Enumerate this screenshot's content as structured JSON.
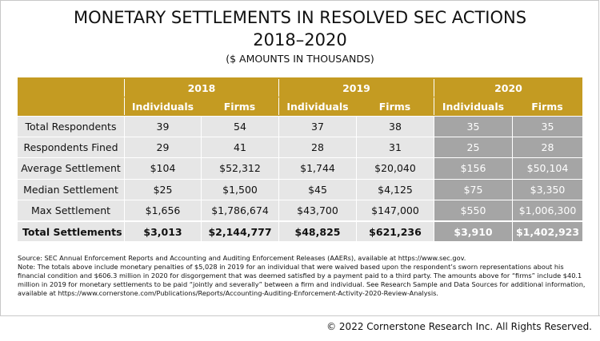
{
  "header": {
    "title": "MONETARY SETTLEMENTS IN RESOLVED SEC ACTIONS",
    "years": "2018–2020",
    "subtitle": "($ AMOUNTS IN THOUSANDS)"
  },
  "table": {
    "years": [
      "2018",
      "2019",
      "2020"
    ],
    "subheaders": [
      "Individuals",
      "Firms",
      "Individuals",
      "Firms",
      "Individuals",
      "Firms"
    ],
    "rows": [
      [
        "Total Respondents",
        "39",
        "54",
        "37",
        "38",
        "35",
        "35"
      ],
      [
        "Respondents Fined",
        "29",
        "41",
        "28",
        "31",
        "25",
        "28"
      ],
      [
        "Average Settlement",
        "$104",
        "$52,312",
        "$1,744",
        "$20,040",
        "$156",
        "$50,104"
      ],
      [
        "Median Settlement",
        "$25",
        "$1,500",
        "$45",
        "$4,125",
        "$75",
        "$3,350"
      ],
      [
        "Max Settlement",
        "$1,656",
        "$1,786,674",
        "$43,700",
        "$147,000",
        "$550",
        "$1,006,300"
      ],
      [
        "Total Settlements",
        "$3,013",
        "$2,144,777",
        "$48,825",
        "$621,236",
        "$3,910",
        "$1,402,923"
      ]
    ]
  },
  "notes": [
    "Source: SEC Annual Enforcement Reports and Accounting and Auditing Enforcement Releases (AAERs), available at https://www.sec.gov.",
    "Note: The totals above include monetary penalties of $5,028 in 2019 for an individual that were waived based upon the respondent’s sworn representations about his financial condition and $606.3 million in 2020 for disgorgement that was deemed satisfied by a payment paid to a third party. The amounts above for “firms” include $40.1 million in 2019 for monetary settlements to be paid “jointly and severally” between a firm and individual. See Research Sample and Data Sources for additional information, available at https://www.cornerstone.com/Publications/Reports/Accounting-Auditing-Enforcement-Activity-2020-Review-Analysis."
  ],
  "footer": "© 2022 Cornerstone Research Inc. All Rights Reserved."
}
